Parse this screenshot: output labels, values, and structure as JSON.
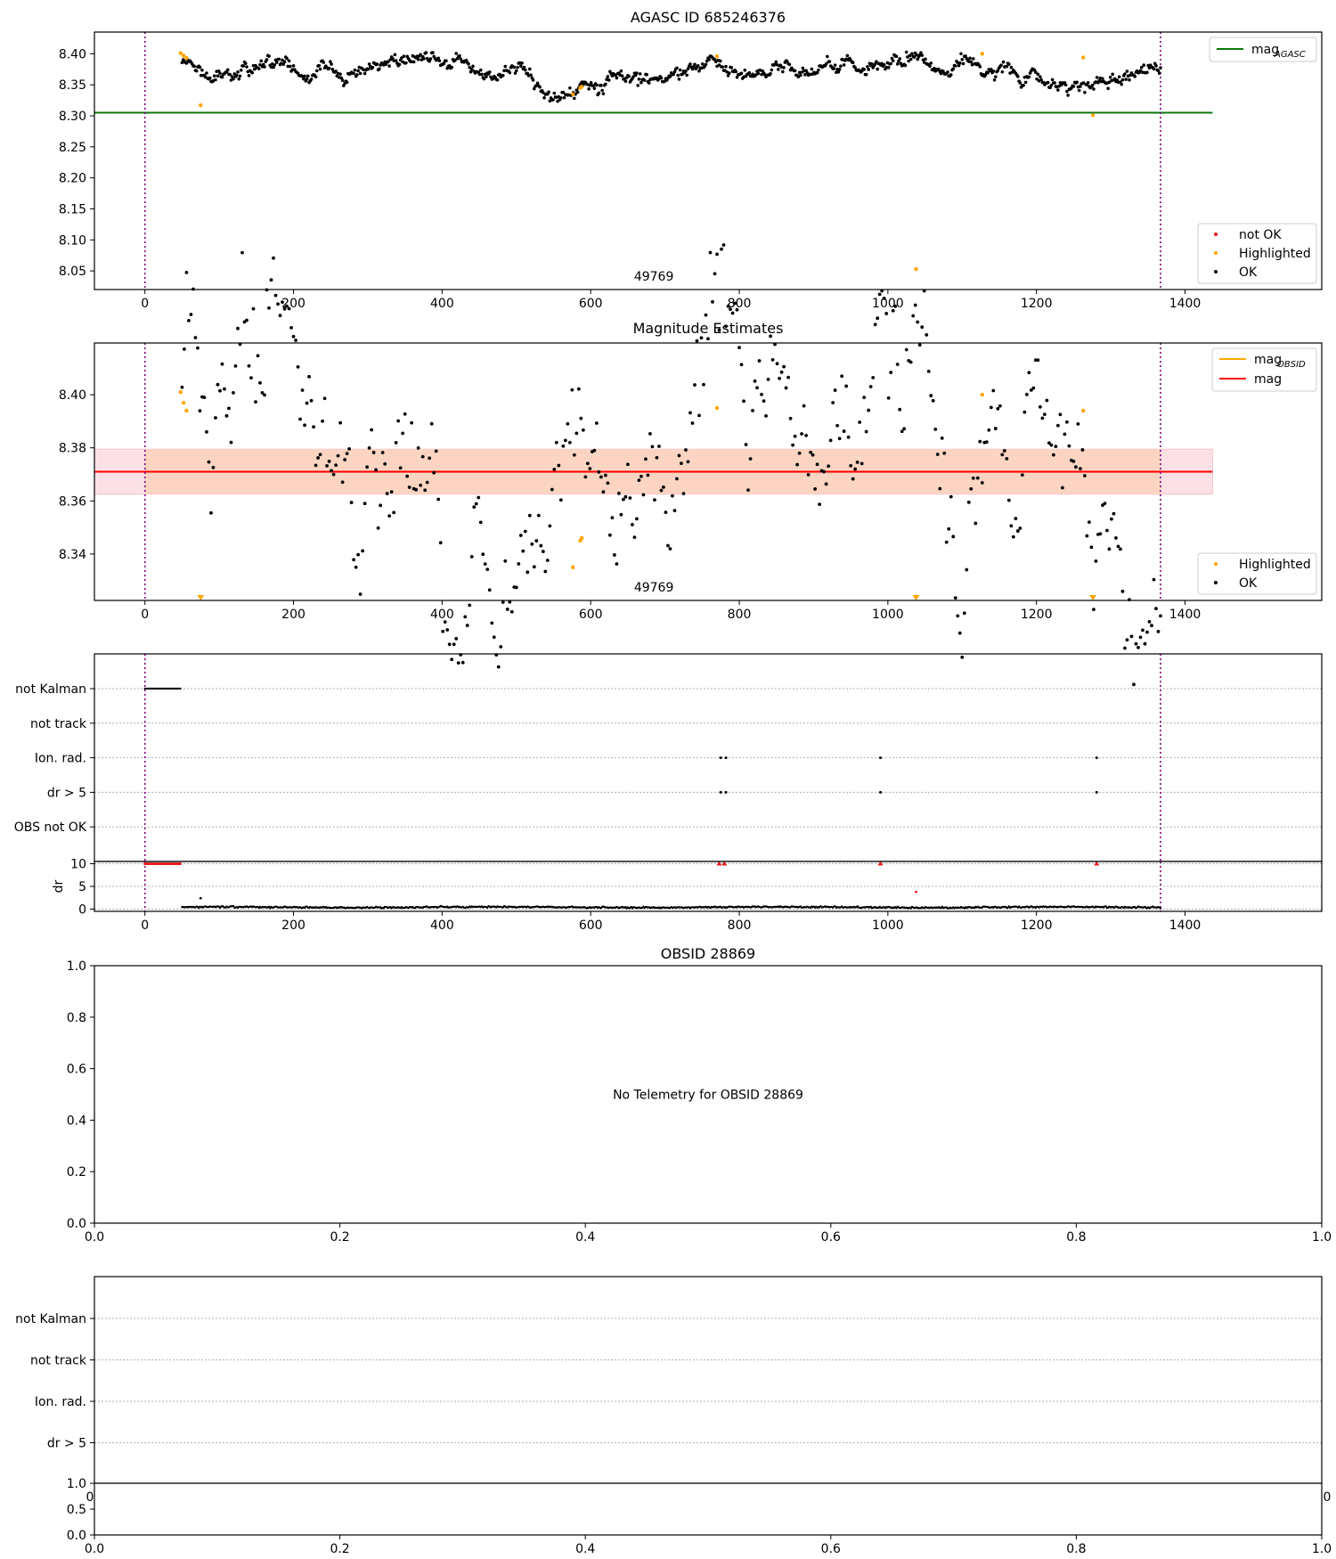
{
  "colors": {
    "ok": "#000000",
    "not_ok": "#e41a1c",
    "highlighted": "#ffa500",
    "mag_agasc": "#0a7a0a",
    "mag_obsid": "#ffa500",
    "mag": "#ff0000",
    "band_inner": "#fcd5c2",
    "band_outer": "#fbe0e6",
    "vline": "#800080",
    "grid": "#b0b0b0"
  },
  "chart_data": [
    {
      "id": "agasc",
      "type": "scatter",
      "title": "AGASC ID 685246376",
      "xlim": [
        -68,
        1584
      ],
      "ylim": [
        8.02,
        8.435
      ],
      "xticks": [
        "0",
        "200",
        "400",
        "600",
        "800",
        "1000",
        "1200",
        "1400"
      ],
      "yticks": [
        "8.05",
        "8.10",
        "8.15",
        "8.20",
        "8.25",
        "8.30",
        "8.35",
        "8.40"
      ],
      "vlines": [
        0,
        1367
      ],
      "annotation": "49769",
      "legend_lines": [
        {
          "label": "mag",
          "sub": "AGASC",
          "color_key": "mag_agasc"
        }
      ],
      "legend_points": [
        {
          "label": "not OK",
          "color_key": "not_ok"
        },
        {
          "label": "Highlighted",
          "color_key": "highlighted"
        },
        {
          "label": "OK",
          "color_key": "ok"
        }
      ],
      "hline": {
        "value": 8.305,
        "xmin": -68,
        "xmax": 1437
      },
      "ok_series": {
        "x_start": 50,
        "x_end": 1367,
        "mean": 8.372,
        "noise": 0.006
      },
      "highlighted_points": [
        [
          48,
          8.401
        ],
        [
          52,
          8.397
        ],
        [
          56,
          8.393
        ],
        [
          75,
          8.317
        ],
        [
          576,
          8.335
        ],
        [
          586,
          8.345
        ],
        [
          588,
          8.347
        ],
        [
          770,
          8.396
        ],
        [
          1038,
          8.053
        ],
        [
          1127,
          8.4
        ],
        [
          1263,
          8.394
        ],
        [
          1276,
          8.301
        ]
      ]
    },
    {
      "id": "estimates",
      "type": "scatter",
      "title": "Magnitude Estimates",
      "xlim": [
        -68,
        1584
      ],
      "ylim": [
        8.3225,
        8.4195
      ],
      "xticks": [
        "0",
        "200",
        "400",
        "600",
        "800",
        "1000",
        "1200",
        "1400"
      ],
      "yticks": [
        "8.34",
        "8.36",
        "8.38",
        "8.40"
      ],
      "vlines": [
        0,
        1367
      ],
      "annotation": "49769",
      "legend_lines": [
        {
          "label": "mag",
          "sub": "OBSID",
          "color_key": "mag_obsid"
        },
        {
          "label": "mag",
          "sub": "",
          "color_key": "mag"
        }
      ],
      "legend_points": [
        {
          "label": "Highlighted",
          "color_key": "highlighted"
        },
        {
          "label": "OK",
          "color_key": "ok"
        }
      ],
      "mag_line": 8.371,
      "band": {
        "low": 8.3625,
        "high": 8.3795
      },
      "ok_series": {
        "x_start": 50,
        "x_end": 1367,
        "mean": 8.371,
        "noise": 0.008
      },
      "highlighted_points": [
        [
          48,
          8.401
        ],
        [
          52,
          8.397
        ],
        [
          56,
          8.394
        ],
        [
          576,
          8.335
        ],
        [
          586,
          8.345
        ],
        [
          588,
          8.346
        ],
        [
          770,
          8.395
        ],
        [
          1127,
          8.4
        ],
        [
          1263,
          8.394
        ]
      ],
      "clipped_markers_x": [
        75,
        1038,
        1276
      ]
    },
    {
      "id": "flags",
      "type": "scatter",
      "flag_rows": [
        "not Kalman",
        "not track",
        "Ion. rad.",
        "dr > 5",
        "OBS not OK"
      ],
      "xlim": [
        -68,
        1584
      ],
      "xticks": [
        "0",
        "200",
        "400",
        "600",
        "800",
        "1000",
        "1200",
        "1400"
      ],
      "vlines": [
        0,
        1367
      ],
      "not_kalman_range": [
        0,
        48
      ],
      "ion_rad_x": [
        775,
        782,
        990,
        1281
      ],
      "dr_gt5_x": [
        775,
        782,
        990,
        1281
      ],
      "dr": {
        "ylabel": "dr",
        "yticks": [
          "0",
          "5",
          "10"
        ],
        "ylim": [
          -0.5,
          10.5
        ],
        "red_at_10_range": [
          0,
          48
        ],
        "red_at_10_x": [
          773,
          780,
          990,
          1281
        ],
        "outliers": [
          [
            75,
            2.4
          ],
          [
            1038,
            3.8
          ]
        ],
        "series": {
          "x_start": 50,
          "x_end": 1367,
          "mean": 0.4
        }
      }
    },
    {
      "id": "obsid",
      "type": "scatter",
      "title": "OBSID 28869",
      "message": "No Telemetry for OBSID 28869",
      "xticks": [
        "0.0",
        "0.2",
        "0.4",
        "0.6",
        "0.8",
        "1.0"
      ],
      "yticks": [
        "0.0",
        "0.2",
        "0.4",
        "0.6",
        "0.8",
        "1.0"
      ]
    },
    {
      "id": "obsid_flags",
      "type": "scatter",
      "flag_rows": [
        "not Kalman",
        "not track",
        "Ion. rad.",
        "dr > 5"
      ],
      "edge_labels": [
        "0",
        "0"
      ],
      "sub_yticks": [
        "0.0",
        "0.5",
        "1.0"
      ],
      "xticks": [
        "0.0",
        "0.2",
        "0.4",
        "0.6",
        "0.8",
        "1.0"
      ]
    }
  ]
}
